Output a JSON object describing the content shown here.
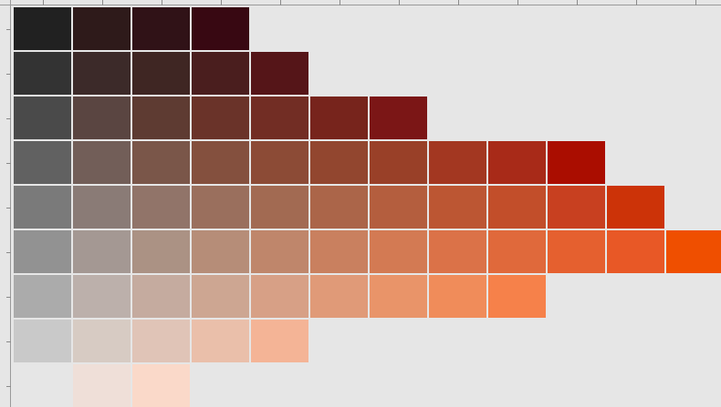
{
  "swatch_grid": {
    "rows": [
      [
        "#212121",
        "#2e1a1a",
        "#301217",
        "#380812"
      ],
      [
        "#333333",
        "#3c2a29",
        "#3f2623",
        "#4a1e1e",
        "#551518"
      ],
      [
        "#4a4a4a",
        "#5a4541",
        "#5e3b32",
        "#6a3329",
        "#722d24",
        "#77241c",
        "#7b1616"
      ],
      [
        "#616161",
        "#725e58",
        "#7a5649",
        "#84503e",
        "#8c4b36",
        "#92462f",
        "#994028",
        "#a33721",
        "#a82a18",
        "#aa0d00"
      ],
      [
        "#7a7a7a",
        "#8a7b76",
        "#917469",
        "#9a6f5d",
        "#a26a52",
        "#ab6549",
        "#b45e3e",
        "#bc5633",
        "#c24e2a",
        "#c84020",
        "#cc3308"
      ],
      [
        "#929292",
        "#a49893",
        "#ab9284",
        "#b68d78",
        "#bf866b",
        "#c9805f",
        "#d37a53",
        "#db7248",
        "#e0693b",
        "#e5602f",
        "#e85826",
        "#ef4f00"
      ],
      [
        "#ababab",
        "#bcb0ab",
        "#c5ab9f",
        "#cda692",
        "#d7a086",
        "#e09a78",
        "#e99469",
        "#f08c5a",
        "#f6814a"
      ],
      [
        "#c9c9c9",
        "#d7cbc3",
        "#e0c4b7",
        "#eabfaa",
        "#f4b496"
      ],
      [
        "#e6e6e6",
        "#efdfd8",
        "#fad9c9"
      ]
    ]
  }
}
